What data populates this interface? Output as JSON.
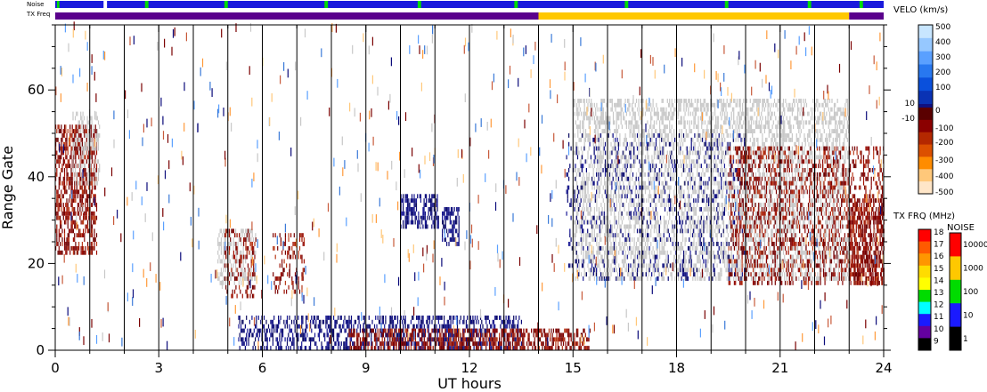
{
  "chart_data": {
    "type": "heatmap",
    "title": "",
    "xlabel": "UT hours",
    "ylabel": "Range Gate",
    "xlim": [
      0,
      24
    ],
    "ylim": [
      0,
      75
    ],
    "x_ticks": [
      0,
      3,
      6,
      9,
      12,
      15,
      18,
      21,
      24
    ],
    "y_ticks": [
      0,
      20,
      40,
      60
    ],
    "vertical_lines_x": [
      1,
      2,
      3,
      4,
      5,
      6,
      7,
      8,
      9,
      10,
      11,
      12,
      13,
      14,
      15,
      16,
      17,
      18,
      19,
      20,
      21,
      22,
      23
    ],
    "status_bars": {
      "noise": {
        "label": "Noise",
        "base_color": "#1a1adc",
        "segments": [
          {
            "start": 0.05,
            "end": 0.12,
            "color": "#00dc00"
          },
          {
            "start": 1.4,
            "end": 1.5,
            "color": "#ffffff"
          },
          {
            "start": 2.6,
            "end": 2.7,
            "color": "#00dc00"
          },
          {
            "start": 4.9,
            "end": 5.0,
            "color": "#00dc00"
          },
          {
            "start": 7.8,
            "end": 7.9,
            "color": "#00dc00"
          },
          {
            "start": 10.5,
            "end": 10.6,
            "color": "#00dc00"
          },
          {
            "start": 13.3,
            "end": 13.4,
            "color": "#00dc00"
          },
          {
            "start": 16.5,
            "end": 16.6,
            "color": "#00dc00"
          },
          {
            "start": 19.4,
            "end": 19.5,
            "color": "#00dc00"
          },
          {
            "start": 21.8,
            "end": 21.9,
            "color": "#00dc00"
          },
          {
            "start": 23.3,
            "end": 23.4,
            "color": "#00dc00"
          }
        ]
      },
      "tx_freq": {
        "label": "TX Freq",
        "segments": [
          {
            "start": 0,
            "end": 14.0,
            "color": "#5a008c"
          },
          {
            "start": 14.0,
            "end": 23.0,
            "color": "#ffc800"
          },
          {
            "start": 23.0,
            "end": 24,
            "color": "#5a008c"
          }
        ]
      }
    },
    "velocity_colorbar": {
      "label": "VELO (km/s)",
      "units": "km/s",
      "ticks": [
        "500",
        "400",
        "300",
        "200",
        "100",
        "10",
        "0",
        "-10",
        "-100",
        "-200",
        "-300",
        "-400",
        "-500"
      ],
      "ground_scatter_color": "#c8c8c8"
    },
    "txfreq_colorbar": {
      "label": "TX FRQ (MHz)",
      "ticks": [
        "18",
        "17",
        "16",
        "15",
        "14",
        "13",
        "12",
        "11",
        "10",
        "9"
      ],
      "colors": [
        "#ff0000",
        "#ff5a00",
        "#ff9600",
        "#ffdc00",
        "#ffff00",
        "#00dc00",
        "#00ffff",
        "#1a1aff",
        "#6400a0",
        "#000000"
      ]
    },
    "noise_colorbar": {
      "label": "NOISE",
      "ticks": [
        "10000",
        "1000",
        "100",
        "10",
        "1"
      ],
      "colors": [
        "#ff0000",
        "#ffc800",
        "#00dc00",
        "#1a1aff",
        "#000000"
      ]
    },
    "scatter_regions": [
      {
        "name": "early-negative-velocity",
        "x": [
          0.0,
          1.2
        ],
        "y": [
          22,
          52
        ],
        "velocity_sign": "negative",
        "density": 0.55
      },
      {
        "name": "early-ground-scatter",
        "x": [
          0.5,
          1.3
        ],
        "y": [
          38,
          55
        ],
        "velocity_sign": "ground",
        "density": 0.35
      },
      {
        "name": "ground-scatter-5h",
        "x": [
          4.7,
          5.8
        ],
        "y": [
          15,
          28
        ],
        "velocity_sign": "ground",
        "density": 0.45
      },
      {
        "name": "mixed-5h",
        "x": [
          4.9,
          5.8
        ],
        "y": [
          12,
          28
        ],
        "velocity_sign": "negative",
        "density": 0.25
      },
      {
        "name": "mixed-6-7h",
        "x": [
          6.3,
          7.2
        ],
        "y": [
          13,
          27
        ],
        "velocity_sign": "negative",
        "density": 0.25
      },
      {
        "name": "blue-patch-10h",
        "x": [
          10.0,
          11.1
        ],
        "y": [
          28,
          36
        ],
        "velocity_sign": "positive",
        "density": 0.55
      },
      {
        "name": "blue-patch-11h",
        "x": [
          11.2,
          11.7
        ],
        "y": [
          24,
          33
        ],
        "velocity_sign": "positive",
        "density": 0.5
      },
      {
        "name": "low-range-positive",
        "x": [
          5.3,
          13.5
        ],
        "y": [
          0,
          8
        ],
        "velocity_sign": "positive",
        "density": 0.4
      },
      {
        "name": "low-range-negative",
        "x": [
          8.5,
          15.5
        ],
        "y": [
          0,
          5
        ],
        "velocity_sign": "negative",
        "density": 0.55
      },
      {
        "name": "afternoon-ground-scatter",
        "x": [
          15.0,
          23.0
        ],
        "y": [
          16,
          58
        ],
        "velocity_sign": "ground",
        "density": 0.42
      },
      {
        "name": "afternoon-positive",
        "x": [
          14.8,
          20.0
        ],
        "y": [
          16,
          50
        ],
        "velocity_sign": "positive",
        "density": 0.12
      },
      {
        "name": "late-negative",
        "x": [
          19.5,
          24.0
        ],
        "y": [
          15,
          47
        ],
        "velocity_sign": "negative",
        "density": 0.3
      },
      {
        "name": "late-edge-negative",
        "x": [
          23.0,
          24.0
        ],
        "y": [
          15,
          35
        ],
        "velocity_sign": "negative",
        "density": 0.55
      }
    ]
  }
}
